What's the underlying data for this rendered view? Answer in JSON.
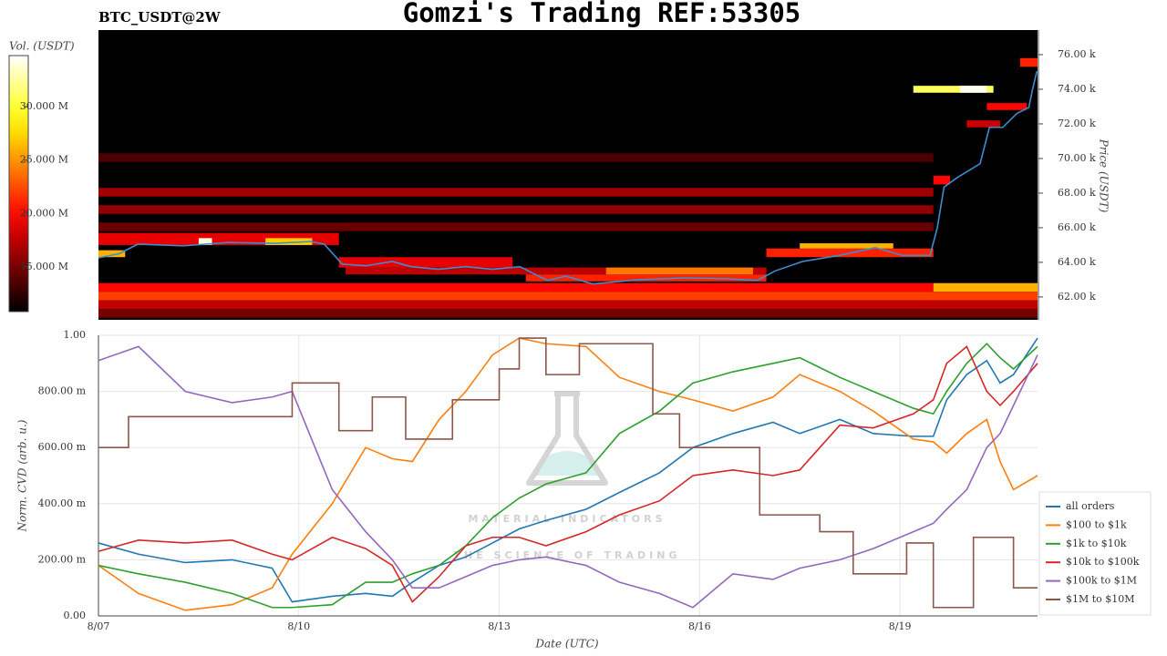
{
  "chart_data": [
    {
      "type": "heatmap",
      "title": "Gomzi's Trading REF:53305",
      "subtitle": "BTC_USDT@2W",
      "y_label": "Price (USDT)",
      "colorbar_label": "Vol. (USDT)",
      "xlim": [
        0,
        14.06
      ],
      "ylim": [
        60680,
        77420
      ],
      "yticks": [
        {
          "value": 62000,
          "label": "62.00 k"
        },
        {
          "value": 64000,
          "label": "64.00 k"
        },
        {
          "value": 66000,
          "label": "66.00 k"
        },
        {
          "value": 68000,
          "label": "68.00 k"
        },
        {
          "value": 70000,
          "label": "70.00 k"
        },
        {
          "value": 72000,
          "label": "72.00 k"
        },
        {
          "value": 74000,
          "label": "74.00 k"
        },
        {
          "value": 76000,
          "label": "76.00 k"
        }
      ],
      "clim": [
        10800000,
        34800000
      ],
      "cticks": [
        {
          "value": 15000000,
          "label": "15.000 M"
        },
        {
          "value": 20000000,
          "label": "20.000 M"
        },
        {
          "value": 25000000,
          "label": "25.000 M"
        },
        {
          "value": 30000000,
          "label": "30.000 M"
        }
      ],
      "colormap": "hot",
      "bands": [
        {
          "x": [
            0,
            12.5
          ],
          "y": [
            69800,
            70300
          ],
          "value": 13500000
        },
        {
          "x": [
            0,
            12.5
          ],
          "y": [
            67800,
            68300
          ],
          "value": 16500000
        },
        {
          "x": [
            0,
            12.5
          ],
          "y": [
            66800,
            67300
          ],
          "value": 16000000
        },
        {
          "x": [
            0,
            12.5
          ],
          "y": [
            65800,
            66300
          ],
          "value": 14500000
        },
        {
          "x": [
            0,
            3.6
          ],
          "y": [
            65000,
            65700
          ],
          "value": 19000000
        },
        {
          "x": [
            1.5,
            1.7
          ],
          "y": [
            65000,
            65400
          ],
          "value": 34000000
        },
        {
          "x": [
            2.5,
            3.2
          ],
          "y": [
            65000,
            65400
          ],
          "value": 27000000
        },
        {
          "x": [
            0,
            0.4
          ],
          "y": [
            64300,
            64700
          ],
          "value": 26000000
        },
        {
          "x": [
            3.6,
            6.2
          ],
          "y": [
            63700,
            64300
          ],
          "value": 19000000
        },
        {
          "x": [
            3.7,
            10.0
          ],
          "y": [
            63300,
            63700
          ],
          "value": 17500000
        },
        {
          "x": [
            6.4,
            10.0
          ],
          "y": [
            62900,
            63300
          ],
          "value": 21000000
        },
        {
          "x": [
            7.6,
            9.8
          ],
          "y": [
            63300,
            63700
          ],
          "value": 24000000
        },
        {
          "x": [
            10.0,
            12.5
          ],
          "y": [
            64300,
            64800
          ],
          "value": 21000000
        },
        {
          "x": [
            10.5,
            11.9
          ],
          "y": [
            64800,
            65100
          ],
          "value": 26000000
        },
        {
          "x": [
            0,
            12.5
          ],
          "y": [
            62300,
            62800
          ],
          "value": 20000000
        },
        {
          "x": [
            12.5,
            14.06
          ],
          "y": [
            62300,
            62800
          ],
          "value": 26000000
        },
        {
          "x": [
            0,
            14.06
          ],
          "y": [
            61800,
            62300
          ],
          "value": 22000000
        },
        {
          "x": [
            0,
            14.06
          ],
          "y": [
            61300,
            61800
          ],
          "value": 17500000
        },
        {
          "x": [
            0,
            14.06
          ],
          "y": [
            60800,
            61300
          ],
          "value": 15000000
        },
        {
          "x": [
            12.2,
            13.4
          ],
          "y": [
            73800,
            74200
          ],
          "value": 31000000
        },
        {
          "x": [
            12.9,
            13.3
          ],
          "y": [
            73800,
            74200
          ],
          "value": 34500000
        },
        {
          "x": [
            13.8,
            14.06
          ],
          "y": [
            75300,
            75800
          ],
          "value": 21000000
        },
        {
          "x": [
            13.3,
            13.9
          ],
          "y": [
            72800,
            73200
          ],
          "value": 20000000
        },
        {
          "x": [
            13.0,
            13.5
          ],
          "y": [
            71800,
            72200
          ],
          "value": 18000000
        },
        {
          "x": [
            12.5,
            12.75
          ],
          "y": [
            68500,
            69000
          ],
          "value": 20000000
        }
      ],
      "price_line": {
        "color": "#3a8fd0",
        "x": [
          0,
          0.31,
          0.59,
          1.27,
          1.95,
          2.63,
          3.18,
          3.38,
          3.65,
          4.0,
          4.4,
          4.68,
          5.09,
          5.5,
          5.9,
          6.31,
          6.72,
          7.0,
          7.4,
          8.09,
          8.77,
          9.45,
          9.86,
          10.13,
          10.54,
          11.09,
          11.63,
          12.04,
          12.45,
          12.56,
          12.66,
          12.86,
          13.2,
          13.34,
          13.54,
          13.75,
          13.93,
          13.98,
          14.05
        ],
        "values": [
          64260,
          64500,
          65050,
          64950,
          65150,
          65100,
          65200,
          65050,
          63900,
          63800,
          64050,
          63750,
          63600,
          63750,
          63600,
          63750,
          62950,
          63200,
          62750,
          63000,
          63100,
          63050,
          62950,
          63500,
          64050,
          64400,
          64850,
          64400,
          64400,
          66000,
          68350,
          68900,
          69700,
          71800,
          71800,
          72600,
          72950,
          73900,
          75050
        ]
      }
    },
    {
      "type": "line",
      "x_label": "Date (UTC)",
      "y_label": "Norm. CVD (arb. u.)",
      "watermark": "MATERIAL INDICATORS",
      "watermark_sub": "THE SCIENCE OF TRADING",
      "xlim": [
        0,
        14.06
      ],
      "ylim": [
        0,
        1
      ],
      "grid": true,
      "xticks": [
        {
          "value": 0,
          "label": "8/07"
        },
        {
          "value": 3,
          "label": "8/10"
        },
        {
          "value": 6,
          "label": "8/13"
        },
        {
          "value": 9,
          "label": "8/16"
        },
        {
          "value": 12,
          "label": "8/19"
        }
      ],
      "yticks": [
        {
          "value": 0,
          "label": "0.00"
        },
        {
          "value": 0.2,
          "label": "200.00 m"
        },
        {
          "value": 0.4,
          "label": "400.00 m"
        },
        {
          "value": 0.6,
          "label": "600.00 m"
        },
        {
          "value": 0.8,
          "label": "800.00 m"
        },
        {
          "value": 1,
          "label": "1.00"
        }
      ],
      "x": [
        0,
        0.6,
        1.3,
        2,
        2.6,
        2.9,
        3.5,
        4,
        4.4,
        4.7,
        5.1,
        5.5,
        5.9,
        6.3,
        6.7,
        7.3,
        7.8,
        8.4,
        8.9,
        9.5,
        10.1,
        10.5,
        11.1,
        11.6,
        12.2,
        12.5,
        12.7,
        13,
        13.3,
        13.5,
        13.7,
        14.06
      ],
      "series": [
        {
          "name": "all orders",
          "color": "#1f77b4",
          "values": [
            0.26,
            0.22,
            0.19,
            0.2,
            0.17,
            0.05,
            0.07,
            0.08,
            0.07,
            0.12,
            0.18,
            0.21,
            0.26,
            0.31,
            0.34,
            0.38,
            0.44,
            0.51,
            0.6,
            0.65,
            0.69,
            0.65,
            0.7,
            0.65,
            0.64,
            0.64,
            0.77,
            0.86,
            0.91,
            0.83,
            0.86,
            0.99
          ]
        },
        {
          "name": "$100 to $1k",
          "color": "#ff7f0e",
          "values": [
            0.18,
            0.08,
            0.02,
            0.04,
            0.1,
            0.22,
            0.4,
            0.6,
            0.56,
            0.55,
            0.7,
            0.8,
            0.93,
            0.99,
            0.97,
            0.96,
            0.85,
            0.8,
            0.77,
            0.73,
            0.78,
            0.86,
            0.8,
            0.73,
            0.63,
            0.62,
            0.58,
            0.65,
            0.7,
            0.55,
            0.45,
            0.5
          ]
        },
        {
          "name": "$1k to $10k",
          "color": "#2ca02c",
          "values": [
            0.18,
            0.15,
            0.12,
            0.08,
            0.03,
            0.03,
            0.04,
            0.12,
            0.12,
            0.15,
            0.18,
            0.25,
            0.35,
            0.42,
            0.47,
            0.51,
            0.65,
            0.73,
            0.83,
            0.87,
            0.9,
            0.92,
            0.85,
            0.8,
            0.74,
            0.72,
            0.8,
            0.9,
            0.97,
            0.92,
            0.88,
            0.96
          ]
        },
        {
          "name": "$10k to $100k",
          "color": "#d62728",
          "values": [
            0.23,
            0.27,
            0.26,
            0.27,
            0.22,
            0.2,
            0.28,
            0.24,
            0.18,
            0.05,
            0.14,
            0.25,
            0.28,
            0.28,
            0.25,
            0.3,
            0.36,
            0.41,
            0.5,
            0.52,
            0.5,
            0.52,
            0.68,
            0.67,
            0.72,
            0.77,
            0.9,
            0.96,
            0.8,
            0.75,
            0.8,
            0.9
          ]
        },
        {
          "name": "$100k to $1M",
          "color": "#9467bd",
          "values": [
            0.91,
            0.96,
            0.8,
            0.76,
            0.78,
            0.8,
            0.45,
            0.3,
            0.2,
            0.1,
            0.1,
            0.14,
            0.18,
            0.2,
            0.21,
            0.18,
            0.12,
            0.08,
            0.03,
            0.15,
            0.13,
            0.17,
            0.2,
            0.24,
            0.3,
            0.33,
            0.38,
            0.45,
            0.6,
            0.65,
            0.75,
            0.93
          ]
        },
        {
          "name": "$1M to $10M",
          "color": "#8c564b",
          "shape": "hv",
          "x": [
            0,
            0.45,
            2.9,
            3.6,
            4.1,
            4.6,
            5.3,
            6.0,
            6.3,
            6.7,
            7.2,
            8.3,
            8.7,
            9.9,
            10.8,
            11.3,
            12.1,
            12.5,
            13.1,
            13.7,
            14.06
          ],
          "values": [
            0.6,
            0.71,
            0.83,
            0.66,
            0.78,
            0.63,
            0.77,
            0.88,
            0.99,
            0.86,
            0.97,
            0.72,
            0.6,
            0.36,
            0.3,
            0.15,
            0.26,
            0.03,
            0.28,
            0.1,
            0.1
          ]
        }
      ]
    }
  ]
}
